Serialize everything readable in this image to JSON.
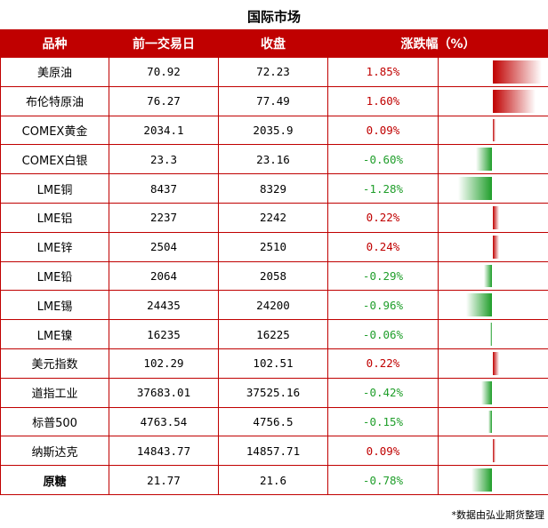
{
  "title": "国际市场",
  "headers": [
    "品种",
    "前一交易日",
    "收盘",
    "涨跌幅（%）"
  ],
  "rows": [
    {
      "name": "美原油",
      "prev": "70.92",
      "close": "72.23",
      "change": "1.85%",
      "value": 1.85
    },
    {
      "name": "布伦特原油",
      "prev": "76.27",
      "close": "77.49",
      "change": "1.60%",
      "value": 1.6
    },
    {
      "name": "COMEX黄金",
      "prev": "2034.1",
      "close": "2035.9",
      "change": "0.09%",
      "value": 0.09
    },
    {
      "name": "COMEX白银",
      "prev": "23.3",
      "close": "23.16",
      "change": "-0.60%",
      "value": -0.6
    },
    {
      "name": "LME铜",
      "prev": "8437",
      "close": "8329",
      "change": "-1.28%",
      "value": -1.28
    },
    {
      "name": "LME铝",
      "prev": "2237",
      "close": "2242",
      "change": "0.22%",
      "value": 0.22
    },
    {
      "name": "LME锌",
      "prev": "2504",
      "close": "2510",
      "change": "0.24%",
      "value": 0.24
    },
    {
      "name": "LME铅",
      "prev": "2064",
      "close": "2058",
      "change": "-0.29%",
      "value": -0.29
    },
    {
      "name": "LME锡",
      "prev": "24435",
      "close": "24200",
      "change": "-0.96%",
      "value": -0.96
    },
    {
      "name": "LME镍",
      "prev": "16235",
      "close": "16225",
      "change": "-0.06%",
      "value": -0.06
    },
    {
      "name": "美元指数",
      "prev": "102.29",
      "close": "102.51",
      "change": "0.22%",
      "value": 0.22
    },
    {
      "name": "道指工业",
      "prev": "37683.01",
      "close": "37525.16",
      "change": "-0.42%",
      "value": -0.42
    },
    {
      "name": "标普500",
      "prev": "4763.54",
      "close": "4756.5",
      "change": "-0.15%",
      "value": -0.15
    },
    {
      "name": "纳斯达克",
      "prev": "14843.77",
      "close": "14857.71",
      "change": "0.09%",
      "value": 0.09
    },
    {
      "name": "原糖",
      "prev": "21.77",
      "close": "21.6",
      "change": "-0.78%",
      "value": -0.78
    }
  ],
  "note": "*数据由弘业期货整理",
  "colors": {
    "up": "#c00000",
    "down": "#1f9e2a",
    "header_bg": "#c00000"
  }
}
